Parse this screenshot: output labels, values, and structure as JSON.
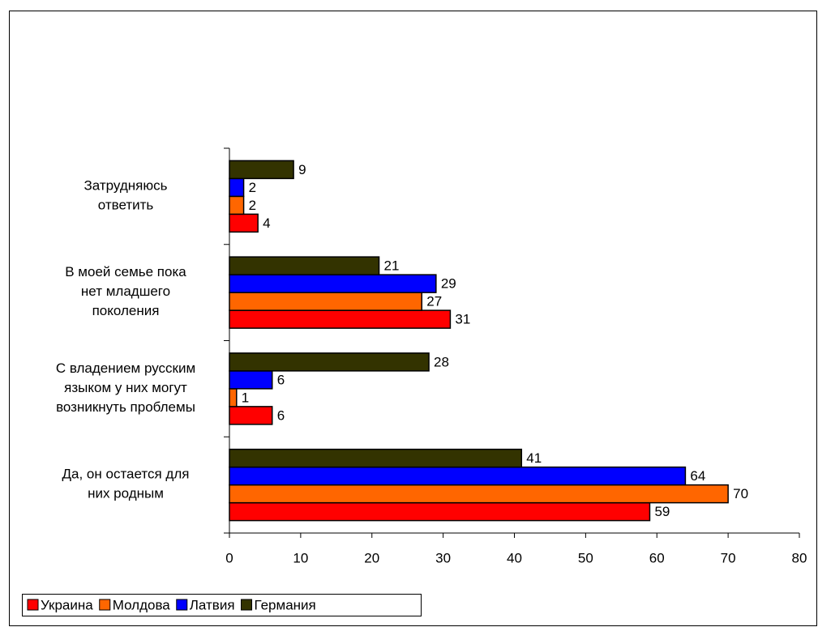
{
  "chart_data": {
    "type": "bar",
    "orientation": "horizontal",
    "categories": [
      "Да, он остается для\nних родным",
      "С владением русским\nязыком у них могут\nвозникнуть проблемы",
      "В моей семье пока\nнет младшего\nпоколения",
      "Затрудняюсь\nответить"
    ],
    "series": [
      {
        "name": "Украина",
        "color": "#ff0000",
        "values": [
          59,
          6,
          31,
          4
        ]
      },
      {
        "name": "Молдова",
        "color": "#ff6600",
        "values": [
          70,
          1,
          27,
          2
        ]
      },
      {
        "name": "Латвия",
        "color": "#0000ff",
        "values": [
          64,
          6,
          29,
          2
        ]
      },
      {
        "name": "Германия",
        "color": "#333300",
        "values": [
          41,
          28,
          21,
          9
        ]
      }
    ],
    "xlim": [
      0,
      80
    ],
    "xticks": [
      0,
      10,
      20,
      30,
      40,
      50,
      60,
      70,
      80
    ],
    "legend": "bottom-left"
  }
}
